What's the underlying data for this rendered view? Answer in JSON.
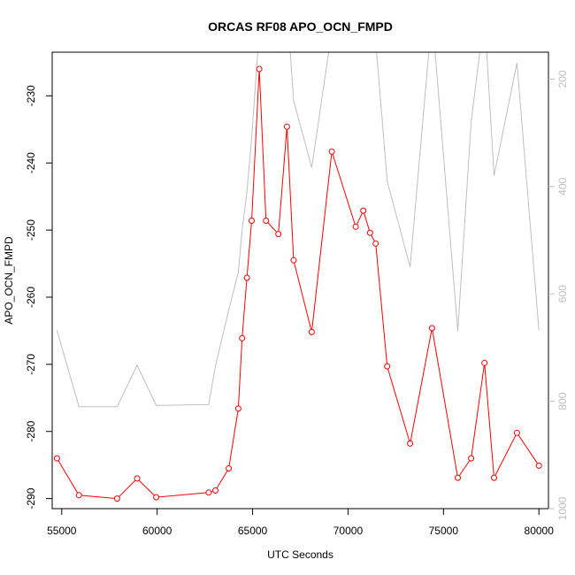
{
  "chart_data": {
    "type": "line",
    "title": "ORCAS RF08 APO_OCN_FMPD",
    "xlabel": "UTC Seconds",
    "ylabel": "APO_OCN_FMPD",
    "xlim": [
      54500,
      80500
    ],
    "ylim": [
      -291.5,
      -223.5
    ],
    "y2lim": [
      1000,
      150
    ],
    "y2_reversed": true,
    "x_ticks": [
      55000,
      60000,
      65000,
      70000,
      75000,
      80000
    ],
    "x_tick_labels": [
      "55000",
      "60000",
      "65000",
      "70000",
      "75000",
      "80000"
    ],
    "y_ticks": [
      -230,
      -240,
      -250,
      -260,
      -270,
      -280,
      -290
    ],
    "y_tick_labels": [
      "-230",
      "-240",
      "-250",
      "-260",
      "-270",
      "-280",
      "-290"
    ],
    "y2_ticks": [
      200,
      400,
      600,
      800,
      1000
    ],
    "y2_tick_labels": [
      "200",
      "400",
      "600",
      "800",
      "1000"
    ],
    "grid": false,
    "colors": {
      "primary": "#ff0000",
      "secondary": "#bebebe",
      "axes": "#000000"
    },
    "series": [
      {
        "role": "primary",
        "style": "line+points",
        "color": "#ff0000",
        "x": [
          54750,
          55900,
          57900,
          58950,
          59950,
          62700,
          63050,
          63750,
          64250,
          64450,
          64700,
          64950,
          65350,
          65700,
          66350,
          66800,
          67150,
          68100,
          69150,
          70400,
          70800,
          71150,
          71450,
          72050,
          73250,
          74400,
          75750,
          76450,
          77150,
          77650,
          78850,
          80000
        ],
        "y": [
          -284.0,
          -289.5,
          -290.0,
          -287.0,
          -289.8,
          -289.1,
          -288.8,
          -285.5,
          -276.6,
          -266.1,
          -257.1,
          -248.6,
          -226.0,
          -248.6,
          -250.6,
          -234.6,
          -254.5,
          -265.2,
          -238.3,
          -249.5,
          -247.1,
          -250.4,
          -252.0,
          -270.3,
          -281.8,
          -264.6,
          -286.9,
          -284.0,
          -269.8,
          -286.9,
          -280.2,
          -285.1
        ]
      },
      {
        "role": "secondary",
        "style": "line",
        "color": "#bebebe",
        "axis": "right",
        "x": [
          54750,
          55900,
          57900,
          58950,
          59950,
          62700,
          63050,
          63750,
          64250,
          64450,
          64700,
          64950,
          65350,
          65700,
          66350,
          66800,
          67150,
          68100,
          69150,
          70400,
          70800,
          71150,
          71450,
          72050,
          73250,
          74400,
          75750,
          76450,
          77150,
          77650,
          78850,
          80000
        ],
        "y": [
          668,
          810,
          810,
          733,
          808,
          806,
          735,
          630,
          560,
          480,
          410,
          310,
          110,
          130,
          150,
          60,
          240,
          365,
          110,
          130,
          90,
          140,
          130,
          390,
          550,
          80,
          670,
          280,
          80,
          380,
          170,
          668
        ]
      }
    ]
  }
}
